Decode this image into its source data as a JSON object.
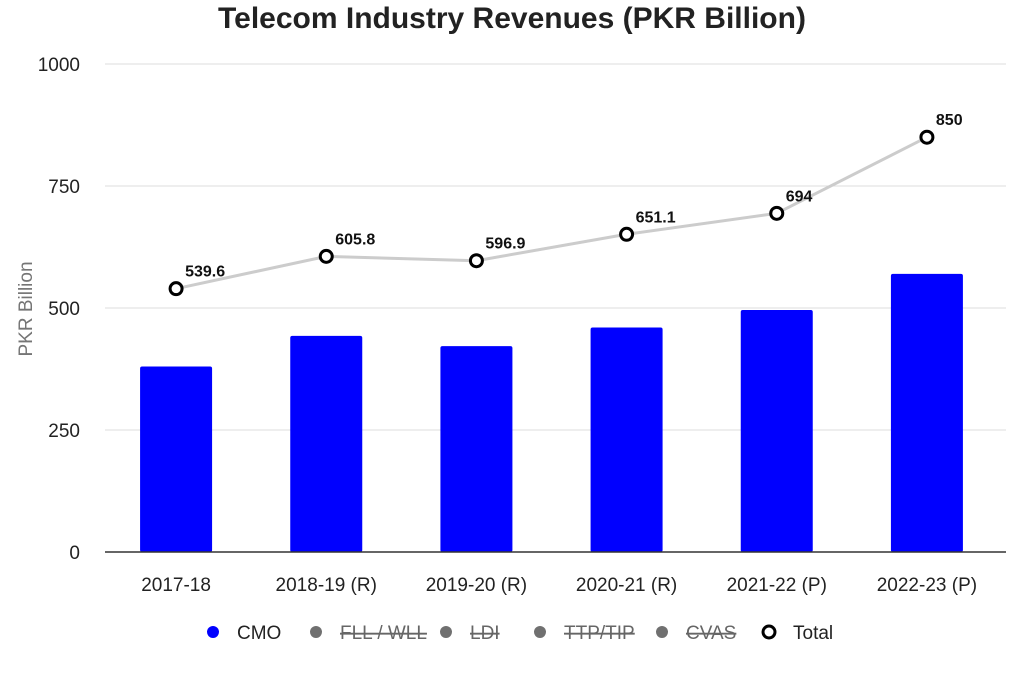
{
  "chart_data": {
    "type": "bar",
    "title": "Telecom Industry Revenues (PKR Billion)",
    "xlabel": "",
    "ylabel": "PKR Billion",
    "ylim": [
      0,
      1000
    ],
    "yticks": [
      0,
      250,
      500,
      750,
      1000
    ],
    "grid": true,
    "legend_position": "bottom",
    "categories": [
      "2017-18",
      "2018-19 (R)",
      "2019-20 (R)",
      "2020-21 (R)",
      "2021-22 (P)",
      "2022-23 (P)"
    ],
    "series": [
      {
        "name": "CMO",
        "type": "bar",
        "color": "#0000ff",
        "values": [
          380,
          443,
          422,
          460,
          496,
          570
        ]
      },
      {
        "name": "Total",
        "type": "line",
        "color": "#cccccc",
        "marker": "open-circle",
        "values": [
          539.6,
          605.8,
          596.9,
          651.1,
          694,
          850
        ],
        "labels": [
          "539.6",
          "605.8",
          "596.9",
          "651.1",
          "694",
          "850"
        ]
      }
    ],
    "legend": [
      {
        "name": "CMO",
        "hidden": false,
        "color": "#0000ff"
      },
      {
        "name": "FLL / WLL",
        "hidden": true,
        "color": "#707070"
      },
      {
        "name": "LDI",
        "hidden": true,
        "color": "#707070"
      },
      {
        "name": "TTP/TIP",
        "hidden": true,
        "color": "#707070"
      },
      {
        "name": "CVAS",
        "hidden": true,
        "color": "#707070"
      },
      {
        "name": "Total",
        "hidden": false,
        "color": "#000000"
      }
    ]
  }
}
